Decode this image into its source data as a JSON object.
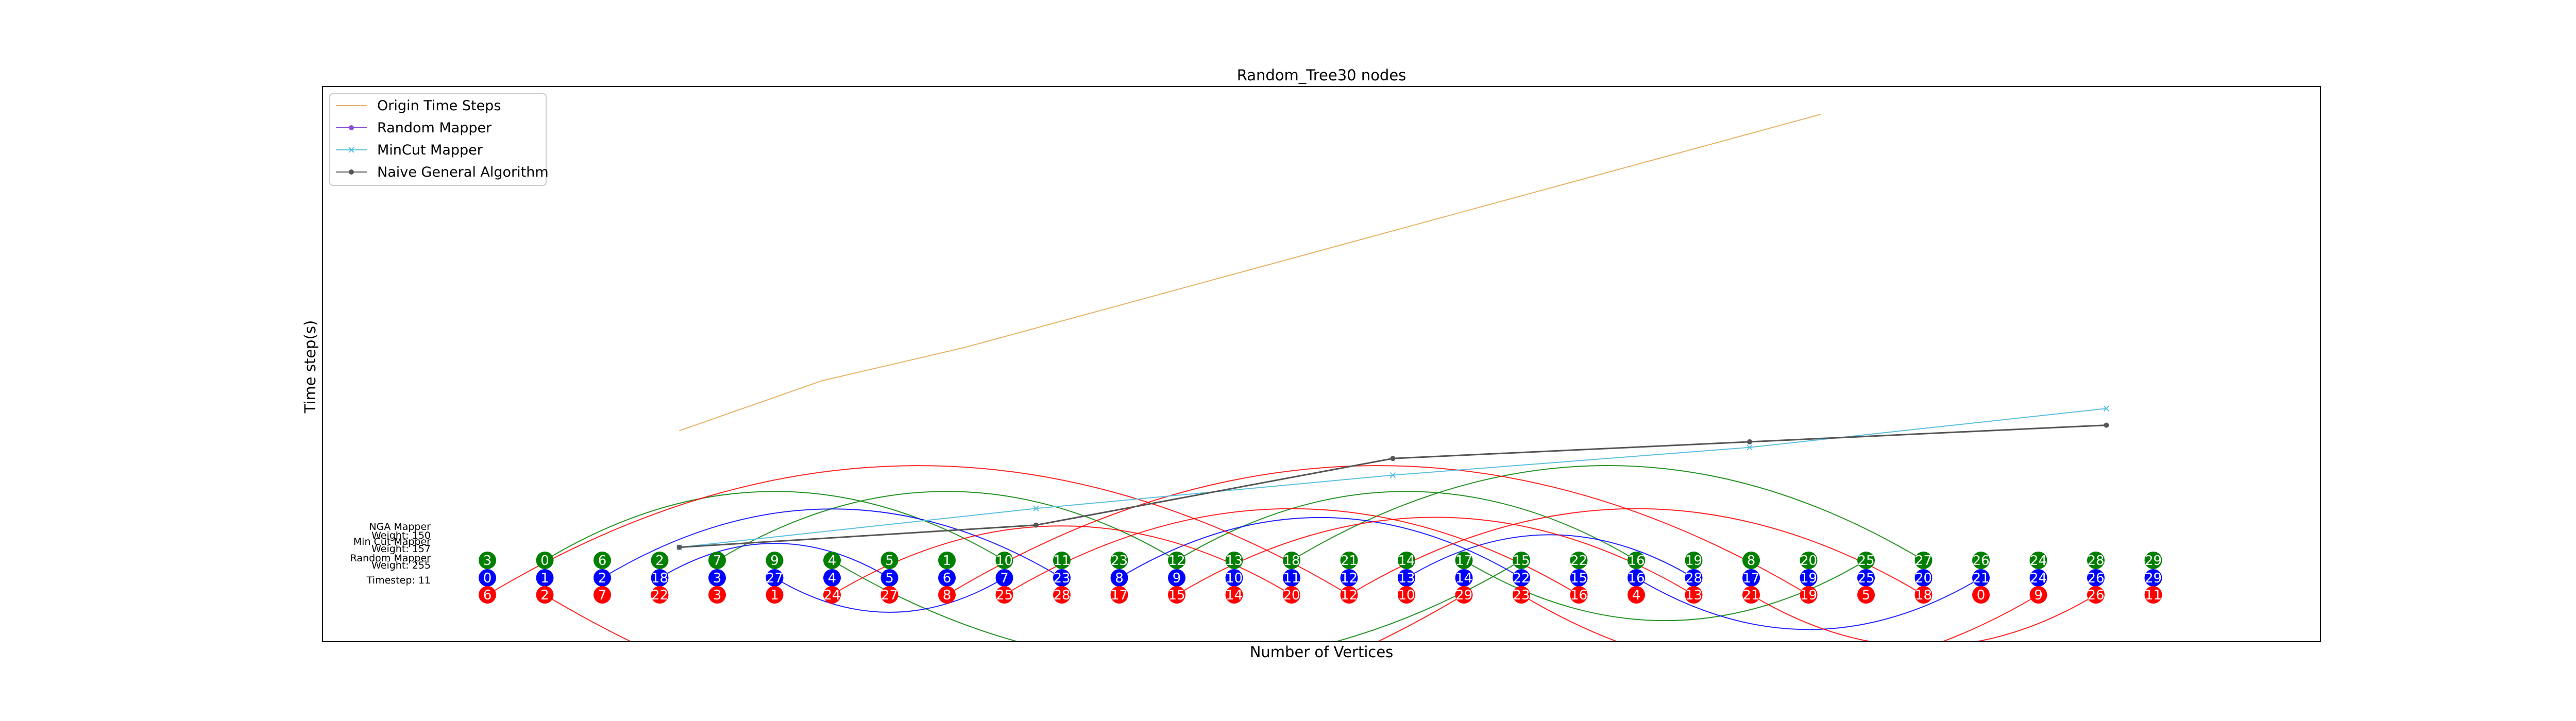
{
  "chart_data": {
    "type": "line",
    "title": "Random_Tree30 nodes",
    "xlabel": "Number of Vertices",
    "ylabel": "Time step(s)",
    "grid": false,
    "legend_position": "top-left",
    "series": [
      {
        "name": "Origin Time Steps",
        "color": "#e6b366",
        "marker": "none",
        "x": [
          13,
          15,
          17,
          19,
          21,
          23,
          25,
          27,
          29
        ],
        "y": [
          0.38,
          0.47,
          0.53,
          0.6,
          0.67,
          0.74,
          0.81,
          0.88,
          0.95
        ]
      },
      {
        "name": "Random Mapper",
        "color": "#8a4fd8",
        "marker": "circle",
        "x": [],
        "y": []
      },
      {
        "name": "MinCut Mapper",
        "color": "#5bc0de",
        "marker": "x",
        "x": [
          13,
          18,
          23,
          28,
          33
        ],
        "y": [
          0.17,
          0.24,
          0.3,
          0.35,
          0.42
        ]
      },
      {
        "name": "Naive General Algorithm",
        "color": "#555555",
        "marker": "circle",
        "x": [
          13,
          18,
          23,
          28,
          33
        ],
        "y": [
          0.17,
          0.21,
          0.33,
          0.36,
          0.39
        ]
      }
    ],
    "xlim": [
      8,
      36
    ],
    "ylim": [
      0,
      1
    ]
  },
  "mapping": {
    "info_lines": [
      "NGA Mapper",
      "Weight: 150",
      "Min Cut Mapper",
      "Weight: 157",
      "Random Mapper",
      "Weight: 255",
      "Timestep: 11"
    ],
    "rows": [
      {
        "color": "#008000",
        "labels": [
          "3",
          "0",
          "6",
          "2",
          "7",
          "9",
          "4",
          "5",
          "1",
          "10",
          "11",
          "23",
          "12",
          "13",
          "18",
          "21",
          "14",
          "17",
          "15",
          "22",
          "16",
          "19",
          "8",
          "20",
          "25",
          "27",
          "26",
          "24",
          "28",
          "29"
        ]
      },
      {
        "color": "#0000ff",
        "labels": [
          "0",
          "1",
          "2",
          "18",
          "3",
          "27",
          "4",
          "5",
          "6",
          "7",
          "23",
          "8",
          "9",
          "10",
          "11",
          "12",
          "13",
          "14",
          "22",
          "15",
          "16",
          "28",
          "17",
          "19",
          "25",
          "20",
          "21",
          "24",
          "26",
          "29"
        ]
      },
      {
        "color": "#ff0000",
        "labels": [
          "6",
          "2",
          "7",
          "22",
          "3",
          "1",
          "24",
          "27",
          "8",
          "25",
          "28",
          "17",
          "15",
          "14",
          "20",
          "12",
          "10",
          "29",
          "23",
          "16",
          "4",
          "13",
          "21",
          "19",
          "5",
          "18",
          "0",
          "9",
          "26",
          "11"
        ]
      }
    ]
  }
}
